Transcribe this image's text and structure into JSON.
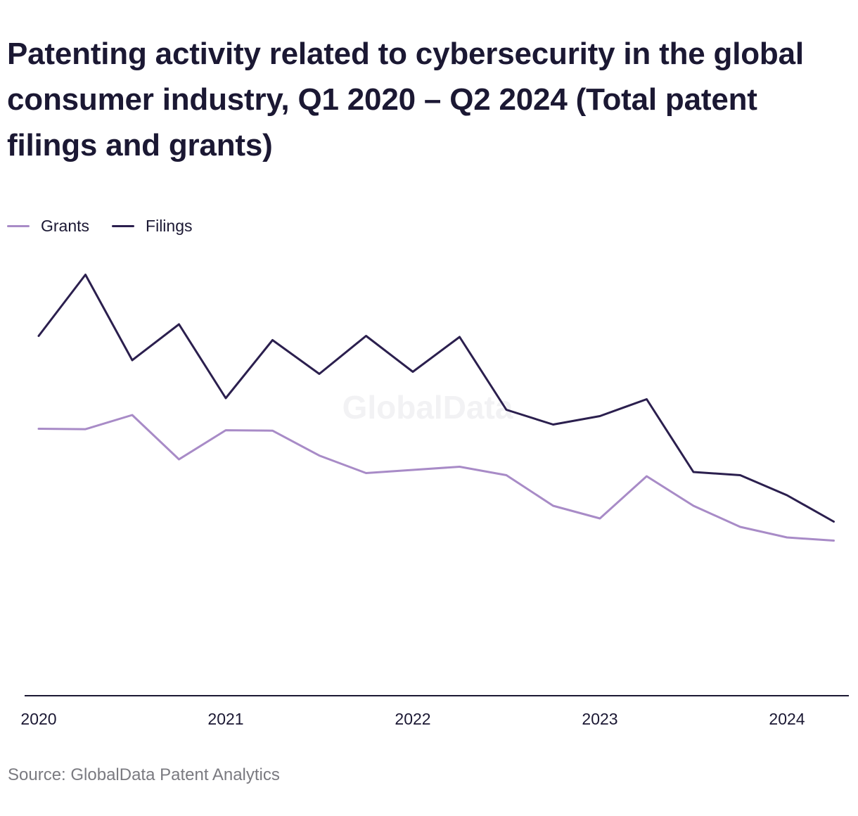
{
  "title": "Patenting activity related to cybersecurity in the global consumer industry, Q1 2020 – Q2 2024 (Total patent filings and grants)",
  "source": "Source: GlobalData Patent Analytics",
  "watermark": "GlobalData",
  "colors": {
    "grants": "#a88bc7",
    "filings": "#2b1f4e",
    "axis": "#1b1833",
    "watermark": "#f2f2f4"
  },
  "chart_data": {
    "type": "line",
    "x": [
      "Q1 2020",
      "Q2 2020",
      "Q3 2020",
      "Q4 2020",
      "Q1 2021",
      "Q2 2021",
      "Q3 2021",
      "Q4 2021",
      "Q1 2022",
      "Q2 2022",
      "Q3 2022",
      "Q4 2022",
      "Q1 2023",
      "Q2 2023",
      "Q3 2023",
      "Q4 2023",
      "Q1 2024",
      "Q2 2024"
    ],
    "xticks": [
      "2020",
      "2021",
      "2022",
      "2023",
      "2024"
    ],
    "ylim": [
      0,
      2000
    ],
    "grid": false,
    "legend_position": "top-left",
    "series": [
      {
        "name": "Grants",
        "values": [
          1265,
          1263,
          1330,
          1120,
          1258,
          1256,
          1138,
          1055,
          1070,
          1085,
          1045,
          900,
          840,
          1040,
          900,
          800,
          750,
          735
        ]
      },
      {
        "name": "Filings",
        "values": [
          1705,
          1995,
          1590,
          1760,
          1410,
          1685,
          1525,
          1705,
          1535,
          1700,
          1355,
          1285,
          1325,
          1405,
          1060,
          1045,
          950,
          825
        ]
      }
    ]
  }
}
